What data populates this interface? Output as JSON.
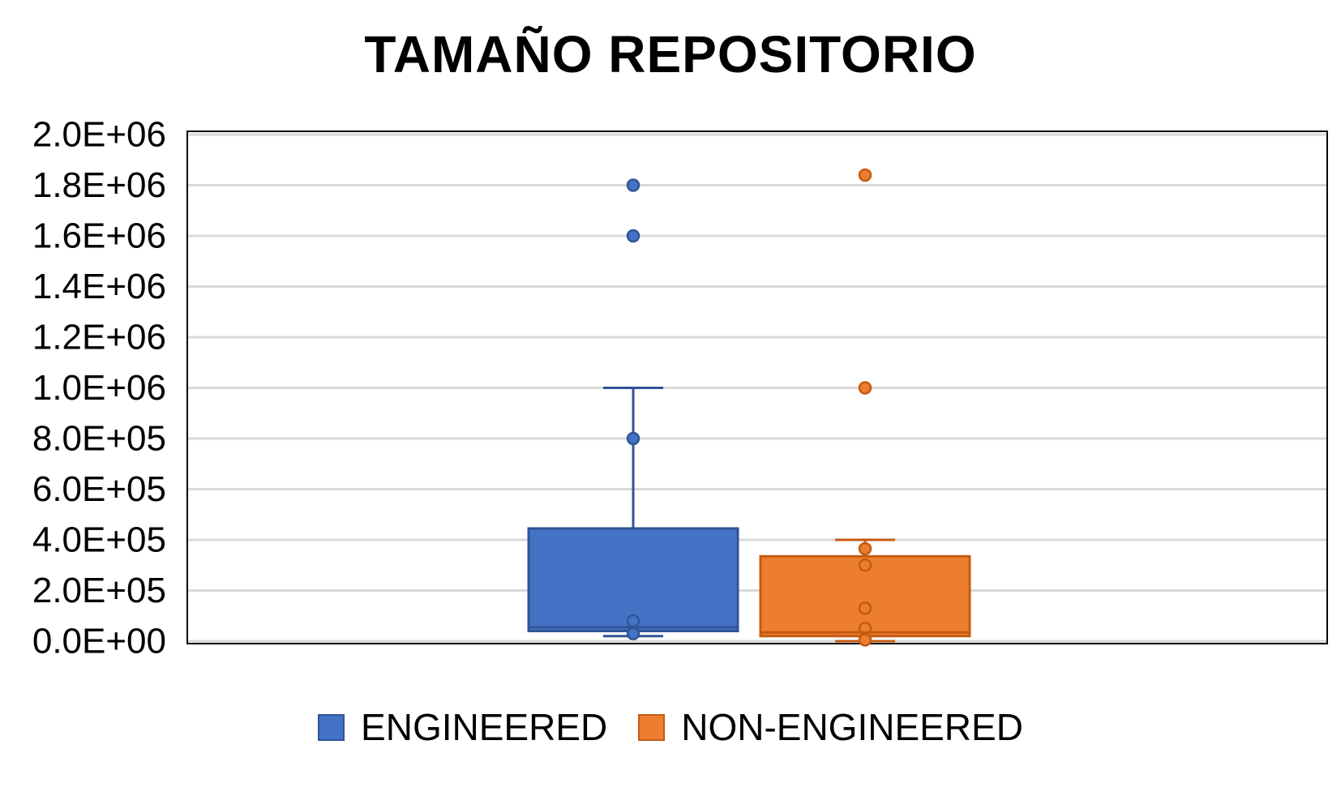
{
  "chart_data": {
    "type": "box",
    "title": "TAMAÑO REPOSITORIO",
    "xlabel": "",
    "ylabel": "",
    "ylim": [
      0,
      2000000
    ],
    "y_ticks": [
      0,
      200000,
      400000,
      600000,
      800000,
      1000000,
      1200000,
      1400000,
      1600000,
      1800000,
      2000000
    ],
    "y_tick_labels": [
      "0.0E+00",
      "2.0E+05",
      "4.0E+05",
      "6.0E+05",
      "8.0E+05",
      "1.0E+06",
      "1.2E+06",
      "1.4E+06",
      "1.6E+06",
      "1.8E+06",
      "2.0E+06"
    ],
    "grid": true,
    "legend_position": "bottom",
    "series": [
      {
        "name": "ENGINEERED",
        "color": "#4472C4",
        "stroke": "#2F5597",
        "whisker_low": 20000,
        "q1": 40000,
        "median": 55000,
        "q3": 445000,
        "whisker_high": 1000000,
        "points": [
          1800000,
          1600000,
          800000,
          80000,
          30000
        ]
      },
      {
        "name": "NON-ENGINEERED",
        "color": "#ED7D31",
        "stroke": "#C55A11",
        "whisker_low": 0,
        "q1": 20000,
        "median": 35000,
        "q3": 335000,
        "whisker_high": 400000,
        "points": [
          1840000,
          1000000,
          365000,
          300000,
          130000,
          50000,
          5000
        ]
      }
    ]
  }
}
